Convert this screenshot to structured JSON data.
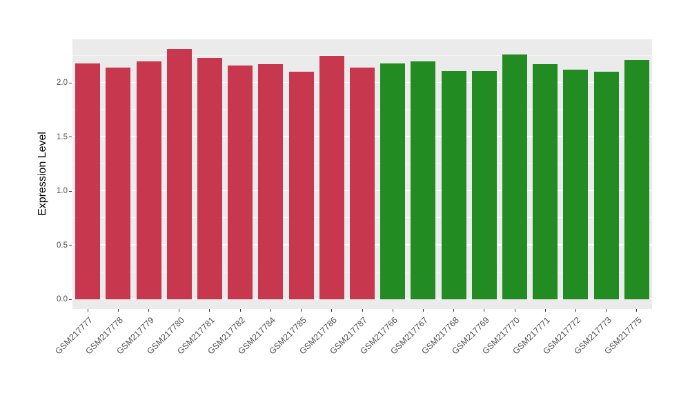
{
  "chart_data": {
    "type": "bar",
    "title": "",
    "xlabel": "",
    "ylabel": "Expression Level",
    "categories": [
      "GSM217777",
      "GSM217778",
      "GSM217779",
      "GSM217780",
      "GSM217781",
      "GSM217782",
      "GSM217784",
      "GSM217785",
      "GSM217786",
      "GSM217787",
      "GSM217766",
      "GSM217767",
      "GSM217768",
      "GSM217769",
      "GSM217770",
      "GSM217771",
      "GSM217772",
      "GSM217773",
      "GSM217775"
    ],
    "values": [
      2.18,
      2.14,
      2.2,
      2.31,
      2.23,
      2.16,
      2.17,
      2.1,
      2.25,
      2.14,
      2.18,
      2.2,
      2.11,
      2.11,
      2.26,
      2.17,
      2.12,
      2.1,
      2.21
    ],
    "colors": [
      "#C7374E",
      "#C7374E",
      "#C7374E",
      "#C7374E",
      "#C7374E",
      "#C7374E",
      "#C7374E",
      "#C7374E",
      "#C7374E",
      "#C7374E",
      "#228B22",
      "#228B22",
      "#228B22",
      "#228B22",
      "#228B22",
      "#228B22",
      "#228B22",
      "#228B22",
      "#228B22"
    ],
    "groups": [
      {
        "color": "#C7374E",
        "count": 10
      },
      {
        "color": "#228B22",
        "count": 9
      }
    ],
    "ylim": [
      0,
      2.4
    ],
    "yticks": [
      0,
      0.5,
      1,
      1.5,
      2
    ],
    "ytick_labels": [
      "0.0",
      "0.5",
      "1.0",
      "1.5",
      "2.0"
    ],
    "yticks_minor": [
      0.25,
      0.75,
      1.25,
      1.75,
      2.25
    ],
    "grid": "on",
    "legend": "none",
    "panel_background": "#EBEBEB",
    "gridline_color": "#FFFFFF",
    "background": "#FFFFFF",
    "axis_text_color": "#4D4D4D"
  }
}
